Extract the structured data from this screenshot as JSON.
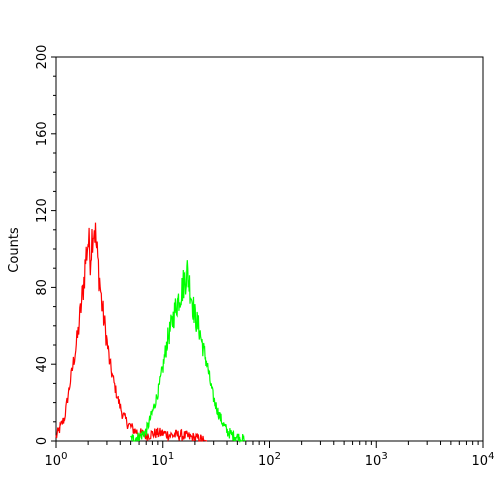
{
  "chart_data": {
    "type": "line",
    "title": "",
    "xlabel": "",
    "ylabel": "Counts",
    "x_scale": "log",
    "xlim": [
      1,
      10000
    ],
    "ylim": [
      0,
      200
    ],
    "x_ticks": [
      {
        "base": "10",
        "exp": "0"
      },
      {
        "base": "10",
        "exp": "1"
      },
      {
        "base": "10",
        "exp": "2"
      },
      {
        "base": "10",
        "exp": "3"
      },
      {
        "base": "10",
        "exp": "4"
      }
    ],
    "y_ticks": [
      "0",
      "40",
      "80",
      "120",
      "160",
      "200"
    ],
    "grid": false,
    "legend": "none",
    "series": [
      {
        "color": "#ff0000",
        "x": [
          1.0,
          1.2,
          1.4,
          1.6,
          1.8,
          1.9,
          2.0,
          2.1,
          2.2,
          2.3,
          2.4,
          2.5,
          2.6,
          2.7,
          2.8,
          3.0,
          3.2,
          3.5,
          3.8,
          4.2,
          4.7,
          5.3,
          6.0,
          7.0,
          8.5,
          10,
          12,
          15,
          18,
          22,
          26
        ],
        "y": [
          2,
          12,
          35,
          55,
          80,
          95,
          105,
          96,
          110,
          112,
          100,
          90,
          80,
          70,
          64,
          52,
          40,
          30,
          22,
          14,
          9,
          6,
          4,
          3,
          4,
          4,
          3,
          3,
          2,
          1,
          0
        ]
      },
      {
        "color": "#00ff00",
        "x": [
          5.0,
          6.0,
          7.0,
          8.0,
          9.0,
          10,
          11,
          12,
          13,
          14,
          15,
          16,
          17,
          18,
          19,
          20,
          22,
          24,
          26,
          28,
          30,
          33,
          36,
          40,
          45,
          50,
          55,
          60
        ],
        "y": [
          1,
          2,
          5,
          15,
          25,
          38,
          52,
          60,
          68,
          74,
          78,
          84,
          88,
          80,
          72,
          65,
          58,
          48,
          40,
          30,
          22,
          15,
          10,
          5,
          3,
          2,
          1,
          0
        ]
      }
    ]
  }
}
